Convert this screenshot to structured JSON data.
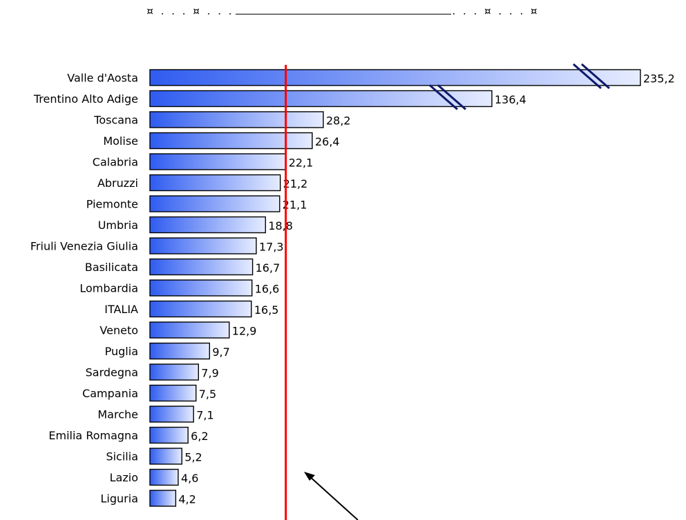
{
  "header": {
    "marker_left": "¤ . . . ¤ . . .",
    "marker_right": ". . . ¤ . . . ¤"
  },
  "chart_data": {
    "type": "bar",
    "orientation": "horizontal",
    "title": "",
    "xlabel": "",
    "ylabel": "",
    "categories": [
      "Valle d'Aosta",
      "Trentino Alto Adige",
      "Toscana",
      "Molise",
      "Calabria",
      "Abruzzi",
      "Piemonte",
      "Umbria",
      "Friuli Venezia Giulia",
      "Basilicata",
      "Lombardia",
      "ITALIA",
      "Veneto",
      "Puglia",
      "Sardegna",
      "Campania",
      "Marche",
      "Emilia Romagna",
      "Sicilia",
      "Lazio",
      "Liguria"
    ],
    "values": [
      235.2,
      136.4,
      28.2,
      26.4,
      22.1,
      21.2,
      21.1,
      18.8,
      17.3,
      16.7,
      16.6,
      16.5,
      12.9,
      9.7,
      7.9,
      7.5,
      7.1,
      6.2,
      5.2,
      4.6,
      4.2
    ],
    "value_labels": [
      "235,2",
      "136,4",
      "28,2",
      "26,4",
      "22,1",
      "21,2",
      "21,1",
      "18,8",
      "17,3",
      "16,7",
      "16,6",
      "16,5",
      "12,9",
      "9,7",
      "7,9",
      "7,5",
      "7,1",
      "6,2",
      "5,2",
      "4,6",
      "4,2"
    ],
    "broken_axis_bars": [
      "Valle d'Aosta",
      "Trentino Alto Adige"
    ],
    "reference_line_value": 22.1,
    "colors": {
      "bar_start": "#2f5cf0",
      "bar_end": "#e6ecff",
      "bar_border": "#000000",
      "reference_line": "#ff0000",
      "break_marks": "#0d1a6b",
      "arrow": "#000000"
    },
    "grid": false,
    "legend": "none"
  }
}
